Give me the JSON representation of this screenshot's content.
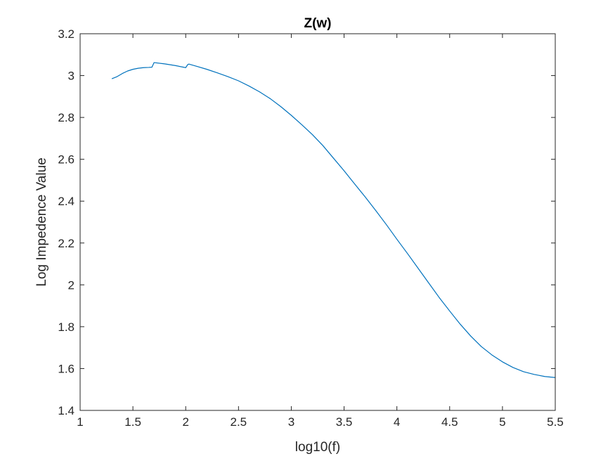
{
  "chart_data": {
    "type": "line",
    "title": "Z(w)",
    "xlabel": "log10(f)",
    "ylabel": "Log Impedence Value",
    "xlim": [
      1,
      5.5
    ],
    "ylim": [
      1.4,
      3.2
    ],
    "xticks": [
      1,
      1.5,
      2,
      2.5,
      3,
      3.5,
      4,
      4.5,
      5,
      5.5
    ],
    "yticks": [
      1.4,
      1.6,
      1.8,
      2,
      2.2,
      2.4,
      2.6,
      2.8,
      3,
      3.2
    ],
    "xtick_labels": [
      "1",
      "1.5",
      "2",
      "2.5",
      "3",
      "3.5",
      "4",
      "4.5",
      "5",
      "5.5"
    ],
    "ytick_labels": [
      "1.4",
      "1.6",
      "1.8",
      "2",
      "2.2",
      "2.4",
      "2.6",
      "2.8",
      "3",
      "3.2"
    ],
    "grid": false,
    "line_color": "#0072bd",
    "axis_color": "#262626",
    "series": [
      {
        "x": [
          1.3,
          1.35,
          1.4,
          1.45,
          1.5,
          1.55,
          1.6,
          1.65,
          1.68,
          1.7,
          1.8,
          1.9,
          2.0,
          2.02,
          2.03,
          2.1,
          2.2,
          2.3,
          2.4,
          2.5,
          2.6,
          2.7,
          2.8,
          2.9,
          3.0,
          3.1,
          3.2,
          3.3,
          3.4,
          3.5,
          3.6,
          3.7,
          3.8,
          3.9,
          4.0,
          4.1,
          4.2,
          4.3,
          4.4,
          4.5,
          4.6,
          4.7,
          4.8,
          4.9,
          5.0,
          5.1,
          5.2,
          5.3,
          5.4,
          5.5
        ],
        "y": [
          2.985,
          2.995,
          3.01,
          3.022,
          3.03,
          3.035,
          3.038,
          3.039,
          3.04,
          3.062,
          3.056,
          3.048,
          3.038,
          3.053,
          3.055,
          3.045,
          3.03,
          3.013,
          2.995,
          2.975,
          2.95,
          2.922,
          2.89,
          2.852,
          2.81,
          2.765,
          2.718,
          2.665,
          2.605,
          2.545,
          2.482,
          2.42,
          2.355,
          2.288,
          2.218,
          2.15,
          2.08,
          2.01,
          1.94,
          1.875,
          1.812,
          1.755,
          1.705,
          1.665,
          1.632,
          1.605,
          1.585,
          1.572,
          1.562,
          1.557
        ]
      }
    ]
  }
}
